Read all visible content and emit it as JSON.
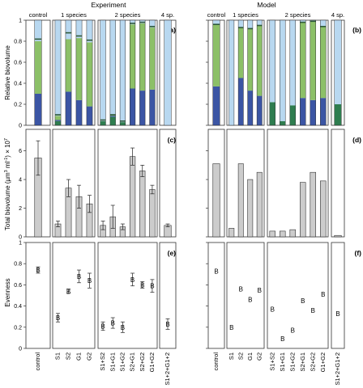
{
  "chart_data": {
    "type": "bar",
    "titles": {
      "experiment": "Experiment",
      "model": "Model"
    },
    "group_headers": [
      "control",
      "1 species",
      "2 species",
      "4 sp."
    ],
    "panel_labels": [
      "(a)",
      "(b)",
      "(c)",
      "(d)",
      "(e)",
      "(f)"
    ],
    "ylabels": {
      "relative": "Relative biovolume",
      "total_prefix": "Total biovolume (µm",
      "total_sup1": "3",
      "total_mid": " ml",
      "total_sup2": "-1",
      "total_suffix": ") × 10",
      "total_sup3": "7",
      "evenness": "Evenness"
    },
    "y_ticks": {
      "relative": [
        "0",
        "0.2",
        "0.4",
        "0.6",
        "0.8",
        "1"
      ],
      "total": [
        "0",
        "2",
        "4",
        "6"
      ],
      "evenness": [
        "0",
        "0.2",
        "0.4",
        "0.6",
        "0.8",
        "1"
      ]
    },
    "ylim": {
      "relative": [
        0,
        1
      ],
      "total": [
        0,
        7.5
      ],
      "evenness": [
        0,
        1
      ]
    },
    "categories": [
      "control",
      "S1",
      "S2",
      "G1",
      "G2",
      "S1+S2",
      "S1+G1",
      "S1+G2",
      "S2+G1",
      "S2+G2",
      "G1+G2",
      "S1+2+G1+2"
    ],
    "x_tick_labels": [
      "control",
      "S1",
      "S2",
      "G1",
      "G2",
      "S1+S2",
      "S1+G1",
      "S1+G2",
      "S2+G1",
      "S2+G2",
      "G1+G2",
      "S1+2+G1+2"
    ],
    "series_colors": {
      "S1": "#2e7d4f",
      "S2": "#3b55a4",
      "G1": "#8cc068",
      "G2": "#b8d8f0"
    },
    "bar_color": "#cccccc",
    "evenness_marker": "B",
    "experiment": {
      "relative": {
        "S1": [
          0,
          0.04,
          0,
          0,
          0,
          0.04,
          0.08,
          0.03,
          0,
          0,
          0,
          0
        ],
        "S2": [
          0.3,
          0.01,
          0.32,
          0.24,
          0.18,
          0,
          0.01,
          0,
          0.35,
          0.33,
          0.34,
          0
        ],
        "G1": [
          0.5,
          0.04,
          0.5,
          0.59,
          0.61,
          0,
          0.01,
          0,
          0.61,
          0.64,
          0.59,
          0
        ],
        "G2": [
          0.2,
          0.91,
          0.18,
          0.17,
          0.21,
          0.96,
          0.9,
          0.97,
          0.04,
          0.03,
          0.07,
          1.0
        ],
        "dark_band": [
          0.82,
          0.1,
          0.88,
          0.85,
          0.81,
          0.05,
          0.1,
          0.04,
          0.97,
          0.98,
          0.94,
          0
        ]
      },
      "total": [
        5.5,
        0.9,
        3.4,
        2.8,
        2.3,
        0.8,
        1.4,
        0.7,
        5.6,
        4.6,
        3.3,
        0.8
      ],
      "total_err": [
        1.2,
        0.2,
        0.6,
        0.8,
        0.6,
        0.3,
        0.8,
        0.2,
        0.6,
        0.4,
        0.3,
        0.1
      ],
      "evenness": [
        0.74,
        0.29,
        0.54,
        0.68,
        0.64,
        0.21,
        0.24,
        0.2,
        0.65,
        0.6,
        0.59,
        0.23
      ],
      "evenness_err": [
        0.03,
        0.04,
        0.02,
        0.06,
        0.07,
        0.04,
        0.05,
        0.05,
        0.06,
        0.03,
        0.06,
        0.05
      ]
    },
    "model": {
      "relative": {
        "S1": [
          0,
          0,
          0,
          0,
          0,
          0.22,
          0.04,
          0.19,
          0,
          0,
          0,
          0.2
        ],
        "S2": [
          0.37,
          0,
          0.45,
          0.33,
          0.28,
          0,
          0,
          0,
          0.26,
          0.24,
          0.26,
          0
        ],
        "G1": [
          0.59,
          0,
          0.48,
          0.59,
          0.67,
          0,
          0,
          0,
          0.72,
          0.75,
          0.68,
          0
        ],
        "G2": [
          0.04,
          1.0,
          0.07,
          0.08,
          0.05,
          0.78,
          0.96,
          0.81,
          0.02,
          0.01,
          0.06,
          0.8
        ],
        "dark_band": [
          0.96,
          0,
          0.93,
          0.92,
          0.95,
          0,
          0,
          0,
          0.98,
          0.99,
          0.94,
          0
        ]
      },
      "total": [
        5.1,
        0.6,
        5.1,
        4.0,
        4.5,
        0.4,
        0.4,
        0.5,
        3.8,
        4.5,
        3.9,
        0.1
      ],
      "evenness": [
        0.73,
        0.2,
        0.56,
        0.46,
        0.55,
        0.37,
        0.09,
        0.17,
        0.45,
        0.36,
        0.51,
        0.33
      ]
    }
  }
}
